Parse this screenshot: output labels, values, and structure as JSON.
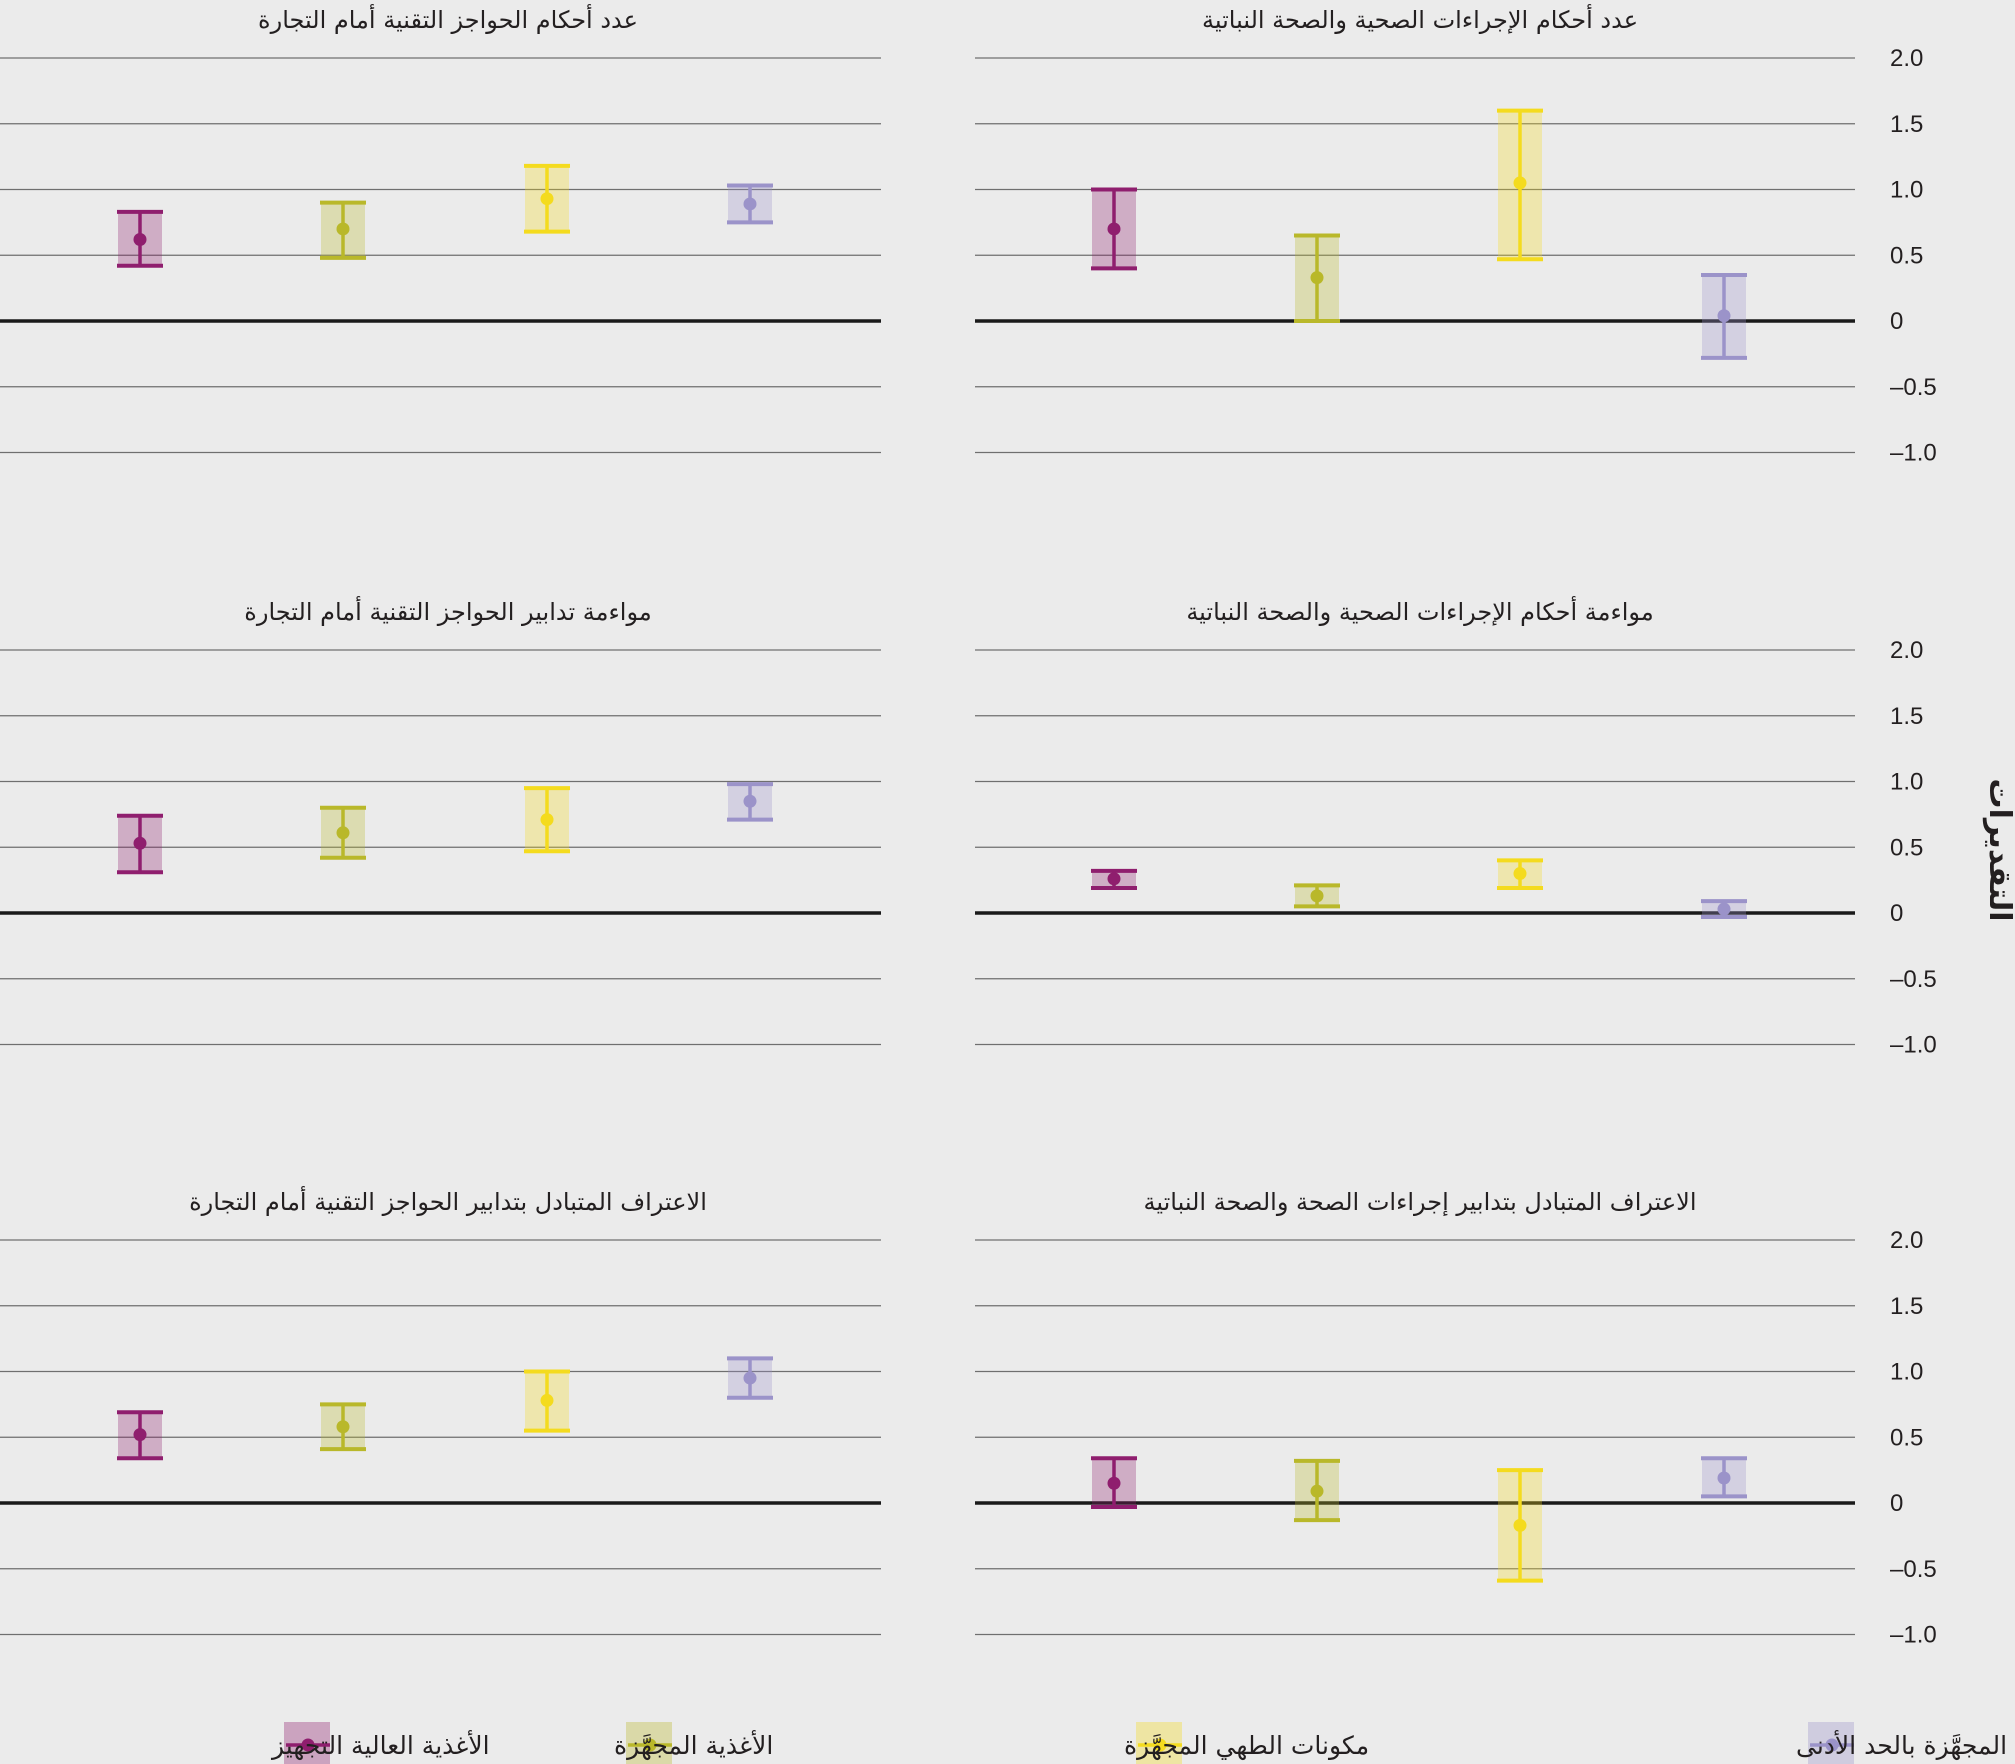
{
  "chart_data": {
    "type": "errorbar",
    "ylabel": "التقديرات",
    "ylim": [
      -1.0,
      2.0
    ],
    "yticks": [
      2.0,
      1.5,
      1.0,
      0.5,
      0,
      -0.5,
      -1.0
    ],
    "ytick_labels": [
      "2.0",
      "1.5",
      "1.0",
      "0.5",
      "0",
      "–0.5",
      "–1.0"
    ],
    "series_order_left_to_right": [
      "high",
      "processed",
      "ingredients",
      "unprocessed"
    ],
    "legend": [
      {
        "key": "unprocessed",
        "label": "الأغذية غير المجهَّزة والأغذية المجهَّزة بالحد الأدنى",
        "color": "#9b93c9"
      },
      {
        "key": "ingredients",
        "label": "مكونات الطهي المجهَّزة",
        "color": "#f4db1e"
      },
      {
        "key": "processed",
        "label": "الأغذية المجهَّزة",
        "color": "#b9b82a"
      },
      {
        "key": "high",
        "label": "الأغذية العالية التجهيز",
        "color": "#8f1e6e"
      }
    ],
    "panels": [
      {
        "title": "عدد أحكام الحواجز التقنية أمام التجارة",
        "points": [
          {
            "series": "high",
            "estimate": 0.62,
            "low": 0.42,
            "high": 0.83
          },
          {
            "series": "processed",
            "estimate": 0.7,
            "low": 0.48,
            "high": 0.9
          },
          {
            "series": "ingredients",
            "estimate": 0.93,
            "low": 0.68,
            "high": 1.18
          },
          {
            "series": "unprocessed",
            "estimate": 0.89,
            "low": 0.75,
            "high": 1.03
          }
        ]
      },
      {
        "title": "عدد أحكام الإجراءات الصحية والصحة النباتية",
        "points": [
          {
            "series": "high",
            "estimate": 0.7,
            "low": 0.4,
            "high": 1.0
          },
          {
            "series": "processed",
            "estimate": 0.33,
            "low": 0.0,
            "high": 0.65
          },
          {
            "series": "ingredients",
            "estimate": 1.05,
            "low": 0.47,
            "high": 1.6
          },
          {
            "series": "unprocessed",
            "estimate": 0.04,
            "low": -0.28,
            "high": 0.35
          }
        ]
      },
      {
        "title": "مواءمة تدابير الحواجز التقنية أمام التجارة",
        "points": [
          {
            "series": "high",
            "estimate": 0.53,
            "low": 0.31,
            "high": 0.74
          },
          {
            "series": "processed",
            "estimate": 0.61,
            "low": 0.42,
            "high": 0.8
          },
          {
            "series": "ingredients",
            "estimate": 0.71,
            "low": 0.47,
            "high": 0.95
          },
          {
            "series": "unprocessed",
            "estimate": 0.85,
            "low": 0.71,
            "high": 0.98
          }
        ]
      },
      {
        "title": "مواءمة أحكام الإجراءات الصحية والصحة النباتية",
        "points": [
          {
            "series": "high",
            "estimate": 0.26,
            "low": 0.19,
            "high": 0.32
          },
          {
            "series": "processed",
            "estimate": 0.13,
            "low": 0.05,
            "high": 0.21
          },
          {
            "series": "ingredients",
            "estimate": 0.3,
            "low": 0.19,
            "high": 0.4
          },
          {
            "series": "unprocessed",
            "estimate": 0.03,
            "low": -0.03,
            "high": 0.09
          }
        ]
      },
      {
        "title": "الاعتراف المتبادل بتدابير الحواجز التقنية أمام التجارة",
        "points": [
          {
            "series": "high",
            "estimate": 0.52,
            "low": 0.34,
            "high": 0.69
          },
          {
            "series": "processed",
            "estimate": 0.58,
            "low": 0.41,
            "high": 0.75
          },
          {
            "series": "ingredients",
            "estimate": 0.78,
            "low": 0.55,
            "high": 1.0
          },
          {
            "series": "unprocessed",
            "estimate": 0.95,
            "low": 0.8,
            "high": 1.1
          }
        ]
      },
      {
        "title": "الاعتراف المتبادل بتدابير إجراءات الصحة والصحة النباتية",
        "points": [
          {
            "series": "high",
            "estimate": 0.15,
            "low": -0.03,
            "high": 0.34
          },
          {
            "series": "processed",
            "estimate": 0.09,
            "low": -0.13,
            "high": 0.32
          },
          {
            "series": "ingredients",
            "estimate": -0.17,
            "low": -0.59,
            "high": 0.25
          },
          {
            "series": "unprocessed",
            "estimate": 0.19,
            "low": 0.05,
            "high": 0.34
          }
        ]
      }
    ]
  }
}
